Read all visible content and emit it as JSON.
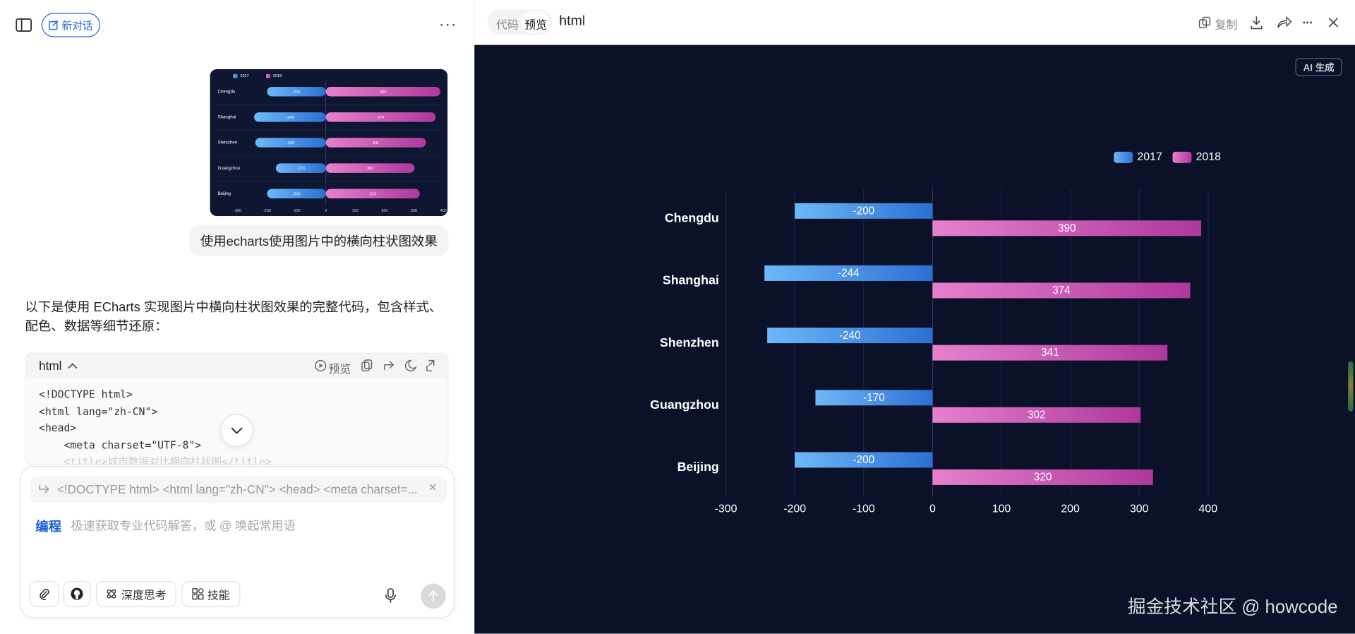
{
  "sidebar": {
    "new_chat": "新对话"
  },
  "conversation": {
    "user_message": "使用echarts使用图片中的横向柱状图效果",
    "reply_intro": "以下是使用 ECharts 实现图片中横向柱状图效果的完整代码，包含样式、配色、数据等细节还原：",
    "code_block": {
      "language": "html",
      "preview": "预览",
      "lines": [
        "<!DOCTYPE html>",
        "<html lang=\"zh-CN\">",
        "<head>",
        "    <meta charset=\"UTF-8\">",
        "    <title>城市数据对比横向柱状图</title>"
      ]
    }
  },
  "composer": {
    "quote": "<!DOCTYPE html> <html lang=\"zh-CN\"> <head> <meta charset=...",
    "mode": "编程",
    "placeholder": "极速获取专业代码解答，或 @ 唤起常用语",
    "buttons": [
      "深度思考",
      "技能"
    ]
  },
  "preview_panel": {
    "tabs": [
      "代码",
      "预览"
    ],
    "title": "html",
    "copy": "复制",
    "badge": "AI 生成",
    "watermark": "掘金技术社区 @ howcode"
  },
  "chart_data": {
    "type": "bar",
    "orientation": "horizontal",
    "categories": [
      "Chengdu",
      "Shanghai",
      "Shenzhen",
      "Guangzhou",
      "Beijing"
    ],
    "series": [
      {
        "name": "2017",
        "color": [
          "#6db8f8",
          "#2c6fd3"
        ],
        "values": [
          -200,
          -244,
          -240,
          -170,
          -200
        ]
      },
      {
        "name": "2018",
        "color": [
          "#e680cc",
          "#ad389c"
        ],
        "values": [
          390,
          374,
          341,
          302,
          320
        ]
      }
    ],
    "xlim": [
      -300,
      400
    ],
    "xticks": [
      -300,
      -200,
      -100,
      0,
      100,
      200,
      300,
      400
    ],
    "grid": true,
    "legend": "top-right"
  }
}
